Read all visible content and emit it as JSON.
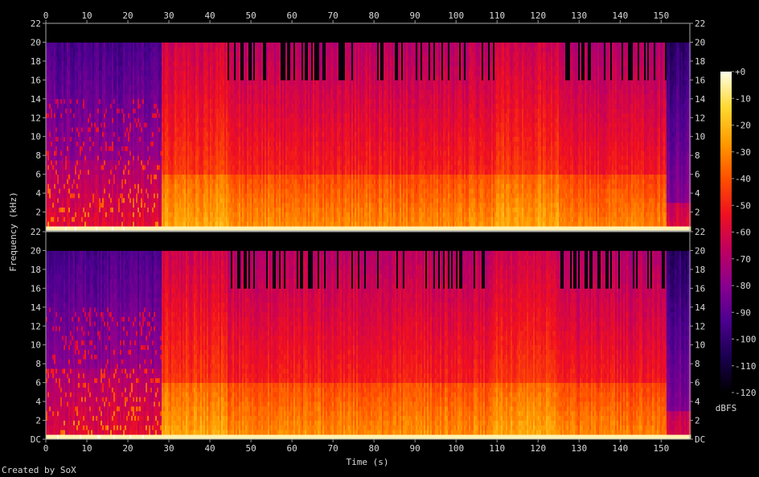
{
  "chart_data": {
    "type": "heatmap",
    "subtype": "spectrogram",
    "channels": 2,
    "xlabel": "Time (s)",
    "ylabel": "Frequency (kHz)",
    "xlim": [
      0,
      157
    ],
    "xticks": [
      0,
      10,
      20,
      30,
      40,
      50,
      60,
      70,
      80,
      90,
      100,
      110,
      120,
      130,
      140,
      150
    ],
    "ylim": [
      0,
      22
    ],
    "yticks": [
      {
        "value": 0,
        "label": "DC"
      },
      {
        "value": 2,
        "label": "2"
      },
      {
        "value": 4,
        "label": "4"
      },
      {
        "value": 6,
        "label": "6"
      },
      {
        "value": 8,
        "label": "8"
      },
      {
        "value": 10,
        "label": "10"
      },
      {
        "value": 12,
        "label": "12"
      },
      {
        "value": 14,
        "label": "14"
      },
      {
        "value": 16,
        "label": "16"
      },
      {
        "value": 18,
        "label": "18"
      },
      {
        "value": 20,
        "label": "20"
      },
      {
        "value": 22,
        "label": "22"
      }
    ],
    "colorbar": {
      "label": "dBFS",
      "range": [
        -120,
        0
      ],
      "ticks": [
        "+0",
        "-10",
        "-20",
        "-30",
        "-40",
        "-50",
        "-60",
        "-70",
        "-80",
        "-90",
        "-100",
        "-110",
        "-120"
      ],
      "colors": [
        "#000000",
        "#1a0050",
        "#4b0090",
        "#8a0090",
        "#c00060",
        "#f01020",
        "#ff5000",
        "#ff9a00",
        "#ffd830",
        "#ffffe8"
      ]
    },
    "segments": [
      {
        "start": 0,
        "end": 28,
        "cutoff_khz": 20,
        "loud_cutoff_khz": 7.5,
        "level_db": -78
      },
      {
        "start": 28,
        "end": 44,
        "cutoff_khz": 20,
        "loud_cutoff_khz": 6,
        "level_db": -45
      },
      {
        "start": 44,
        "end": 109,
        "cutoff_khz": 20,
        "loud_cutoff_khz": 6,
        "level_db": -50,
        "gaps_above_khz": 16
      },
      {
        "start": 109,
        "end": 125,
        "cutoff_khz": 20,
        "loud_cutoff_khz": 6,
        "level_db": -45
      },
      {
        "start": 125,
        "end": 151,
        "cutoff_khz": 20,
        "loud_cutoff_khz": 6,
        "level_db": -52,
        "gaps_above_khz": 16
      },
      {
        "start": 151,
        "end": 157,
        "cutoff_khz": 20,
        "loud_cutoff_khz": 3,
        "level_db": -80
      }
    ]
  },
  "footer": {
    "credit": "Created by SoX"
  }
}
